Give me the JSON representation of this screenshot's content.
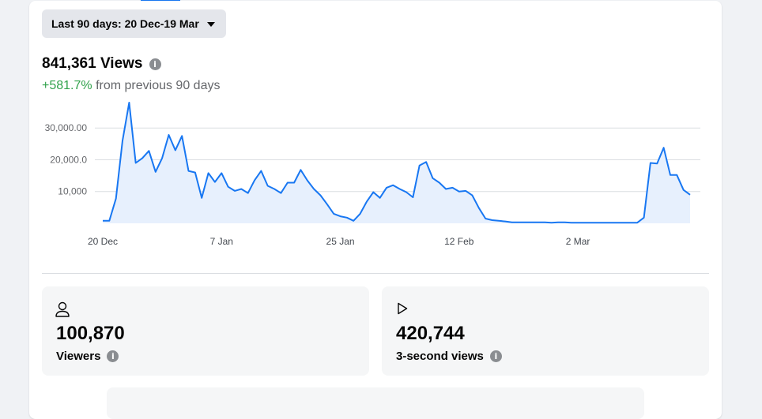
{
  "date_range": {
    "label": "Last 90 days: 20 Dec-19 Mar"
  },
  "summary": {
    "views_value": "841,361",
    "views_label": "Views",
    "change_pct": "+581.7%",
    "change_text": "from previous 90 days"
  },
  "icons": {
    "info": "info-icon",
    "dropdown": "caret-down-icon",
    "viewer": "person-icon",
    "play": "play-icon"
  },
  "colors": {
    "line": "#1877f2",
    "fill": "#e7f0fd",
    "positive": "#31a24c",
    "grid": "#dadde1"
  },
  "chart_data": {
    "type": "area",
    "y_ticks": [
      {
        "value": 10000,
        "label": "10,000"
      },
      {
        "value": 20000,
        "label": "20,000.0"
      },
      {
        "value": 30000,
        "label": "30,000.00"
      }
    ],
    "ylim": [
      0,
      37000
    ],
    "x_ticks": [
      {
        "day": 0,
        "label": "20 Dec"
      },
      {
        "day": 18,
        "label": "7 Jan"
      },
      {
        "day": 36,
        "label": "25 Jan"
      },
      {
        "day": 54,
        "label": "12 Feb"
      },
      {
        "day": 72,
        "label": "2 Mar"
      }
    ],
    "grid": true,
    "series": [
      {
        "values": [
          800,
          800,
          7800,
          26000,
          38000,
          19000,
          20500,
          22800,
          16200,
          20500,
          27800,
          23000,
          27500,
          16500,
          16000,
          8000,
          15800,
          13000,
          15800,
          11500,
          10200,
          10800,
          9500,
          13500,
          16500,
          11800,
          10800,
          9500,
          12800,
          12800,
          16800,
          13500,
          10800,
          8800,
          6000,
          3000,
          2200,
          1800,
          800,
          3000,
          6800,
          9800,
          8000,
          11200,
          12000,
          10800,
          9800,
          8200,
          18200,
          19300,
          14200,
          12800,
          10800,
          11200,
          10000,
          10200,
          8800,
          4800,
          1500,
          1000,
          800,
          600,
          300,
          300,
          300,
          300,
          300,
          300,
          200,
          300,
          300,
          200,
          200,
          200,
          200,
          200,
          200,
          200,
          200,
          200,
          200,
          200,
          1800,
          19000,
          18800,
          23800,
          15200,
          15200,
          10500,
          9000
        ]
      }
    ]
  },
  "stats": [
    {
      "value": "100,870",
      "label": "Viewers"
    },
    {
      "value": "420,744",
      "label": "3-second views"
    }
  ]
}
